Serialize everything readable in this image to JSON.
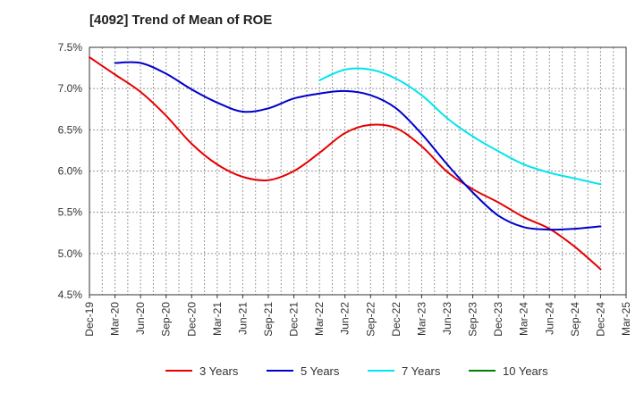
{
  "chart_data": {
    "type": "line",
    "title": "[4092]  Trend of Mean of ROE",
    "xlabel": "",
    "ylabel": "",
    "ylim": [
      4.5,
      7.5
    ],
    "y_ticks": [
      "7.5%",
      "7.0%",
      "6.5%",
      "6.0%",
      "5.5%",
      "5.0%",
      "4.5%"
    ],
    "x_ticks": [
      "Dec-19",
      "Mar-20",
      "Jun-20",
      "Sep-20",
      "Dec-20",
      "Mar-21",
      "Jun-21",
      "Sep-21",
      "Dec-21",
      "Mar-22",
      "Jun-22",
      "Sep-22",
      "Dec-22",
      "Mar-23",
      "Jun-23",
      "Sep-23",
      "Dec-23",
      "Mar-24",
      "Jun-24",
      "Sep-24",
      "Dec-24",
      "Mar-25"
    ],
    "grid": true,
    "legend_position": "bottom",
    "series": [
      {
        "name": "3 Years",
        "color": "#e60000",
        "points": [
          [
            "Dec-19",
            7.38
          ],
          [
            "Mar-20",
            7.17
          ],
          [
            "Jun-20",
            6.96
          ],
          [
            "Sep-20",
            6.67
          ],
          [
            "Dec-20",
            6.33
          ],
          [
            "Mar-21",
            6.08
          ],
          [
            "Jun-21",
            5.93
          ],
          [
            "Sep-21",
            5.89
          ],
          [
            "Dec-21",
            6.0
          ],
          [
            "Mar-22",
            6.22
          ],
          [
            "Jun-22",
            6.46
          ],
          [
            "Sep-22",
            6.56
          ],
          [
            "Dec-22",
            6.52
          ],
          [
            "Mar-23",
            6.3
          ],
          [
            "Jun-23",
            5.99
          ],
          [
            "Sep-23",
            5.78
          ],
          [
            "Dec-23",
            5.62
          ],
          [
            "Mar-24",
            5.44
          ],
          [
            "Jun-24",
            5.3
          ],
          [
            "Sep-24",
            5.08
          ],
          [
            "Dec-24",
            4.81
          ]
        ]
      },
      {
        "name": "5 Years",
        "color": "#0000cc",
        "points": [
          [
            "Mar-20",
            7.31
          ],
          [
            "Jun-20",
            7.31
          ],
          [
            "Sep-20",
            7.18
          ],
          [
            "Dec-20",
            6.99
          ],
          [
            "Mar-21",
            6.83
          ],
          [
            "Jun-21",
            6.72
          ],
          [
            "Sep-21",
            6.76
          ],
          [
            "Dec-21",
            6.88
          ],
          [
            "Mar-22",
            6.94
          ],
          [
            "Jun-22",
            6.97
          ],
          [
            "Sep-22",
            6.92
          ],
          [
            "Dec-22",
            6.76
          ],
          [
            "Mar-23",
            6.45
          ],
          [
            "Jun-23",
            6.08
          ],
          [
            "Sep-23",
            5.74
          ],
          [
            "Dec-23",
            5.46
          ],
          [
            "Mar-24",
            5.32
          ],
          [
            "Jun-24",
            5.29
          ],
          [
            "Sep-24",
            5.3
          ],
          [
            "Dec-24",
            5.33
          ]
        ]
      },
      {
        "name": "7 Years",
        "color": "#00e5ee",
        "points": [
          [
            "Mar-22",
            7.1
          ],
          [
            "Jun-22",
            7.23
          ],
          [
            "Sep-22",
            7.23
          ],
          [
            "Dec-22",
            7.12
          ],
          [
            "Mar-23",
            6.92
          ],
          [
            "Jun-23",
            6.64
          ],
          [
            "Sep-23",
            6.42
          ],
          [
            "Dec-23",
            6.24
          ],
          [
            "Mar-24",
            6.08
          ],
          [
            "Jun-24",
            5.98
          ],
          [
            "Sep-24",
            5.91
          ],
          [
            "Dec-24",
            5.84
          ]
        ]
      },
      {
        "name": "10 Years",
        "color": "#008000",
        "points": []
      }
    ]
  }
}
